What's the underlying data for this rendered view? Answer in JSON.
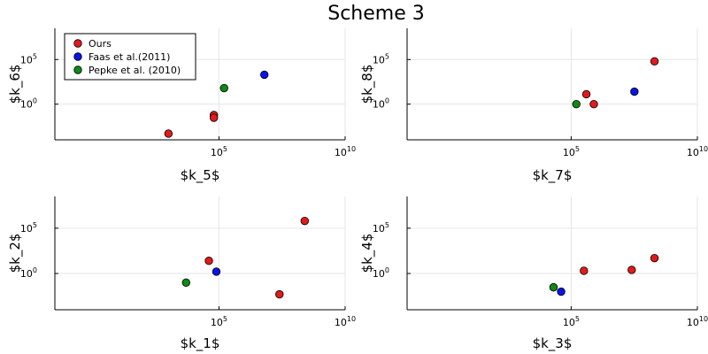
{
  "title": "Scheme 3",
  "colors": {
    "Ours": "#e31a1c",
    "Faas et al.(2011)": "#0a14e8",
    "Pepke et al. (2010)": "#0e8a16"
  },
  "chart_data": [
    {
      "type": "scatter",
      "xlabel": "$k_5$",
      "ylabel": "$k_6$",
      "x_scale": "log10",
      "y_scale": "log10",
      "xlim_exp": [
        -1.5,
        10
      ],
      "ylim_exp": [
        -4,
        8.5
      ],
      "x_ticks": [
        {
          "base": "10",
          "exp": "5",
          "value_exp": 5
        },
        {
          "base": "10",
          "exp": "10",
          "value_exp": 10
        }
      ],
      "y_ticks": [
        {
          "base": "10",
          "exp": "5",
          "value_exp": 5
        },
        {
          "base": "10",
          "exp": "0",
          "value_exp": 0
        }
      ],
      "legend": {
        "placement": "top-left",
        "entries": [
          "Ours",
          "Faas et al.(2011)",
          "Pepke et al. (2010)"
        ]
      },
      "series": [
        {
          "name": "Ours",
          "points": [
            [
              1000,
              0.0005
            ],
            [
              63000,
              0.06
            ],
            [
              63000,
              0.03
            ]
          ]
        },
        {
          "name": "Faas et al.(2011)",
          "points": [
            [
              6300000,
              2000
            ]
          ]
        },
        {
          "name": "Pepke et al. (2010)",
          "points": [
            [
              160000,
              63
            ]
          ]
        }
      ]
    },
    {
      "type": "scatter",
      "xlabel": "$k_7$",
      "ylabel": "$k_8$",
      "x_scale": "log10",
      "y_scale": "log10",
      "xlim_exp": [
        -1.5,
        10
      ],
      "ylim_exp": [
        -4,
        8.5
      ],
      "x_ticks": [
        {
          "base": "10",
          "exp": "5",
          "value_exp": 5
        },
        {
          "base": "10",
          "exp": "10",
          "value_exp": 10
        }
      ],
      "y_ticks": [
        {
          "base": "10",
          "exp": "5",
          "value_exp": 5
        },
        {
          "base": "10",
          "exp": "0",
          "value_exp": 0
        }
      ],
      "legend": null,
      "series": [
        {
          "name": "Ours",
          "points": [
            [
              400000,
              13
            ],
            [
              790000,
              1.0
            ],
            [
              200000000,
              63000
            ]
          ]
        },
        {
          "name": "Faas et al.(2011)",
          "points": [
            [
              32000000,
              25
            ]
          ]
        },
        {
          "name": "Pepke et al. (2010)",
          "points": [
            [
              160000,
              1.0
            ]
          ]
        }
      ]
    },
    {
      "type": "scatter",
      "xlabel": "$k_1$",
      "ylabel": "$k_2$",
      "x_scale": "log10",
      "y_scale": "log10",
      "xlim_exp": [
        -1.5,
        10
      ],
      "ylim_exp": [
        -4,
        8.5
      ],
      "x_ticks": [
        {
          "base": "10",
          "exp": "5",
          "value_exp": 5
        },
        {
          "base": "10",
          "exp": "10",
          "value_exp": 10
        }
      ],
      "y_ticks": [
        {
          "base": "10",
          "exp": "5",
          "value_exp": 5
        },
        {
          "base": "10",
          "exp": "0",
          "value_exp": 0
        }
      ],
      "legend": null,
      "series": [
        {
          "name": "Ours",
          "points": [
            [
              40000,
              25
            ],
            [
              25000000,
              0.005
            ],
            [
              250000000,
              630000
            ]
          ]
        },
        {
          "name": "Faas et al.(2011)",
          "points": [
            [
              79000,
              1.6
            ]
          ]
        },
        {
          "name": "Pepke et al. (2010)",
          "points": [
            [
              5000,
              0.1
            ]
          ]
        }
      ]
    },
    {
      "type": "scatter",
      "xlabel": "$k_3$",
      "ylabel": "$k_4$",
      "x_scale": "log10",
      "y_scale": "log10",
      "xlim_exp": [
        -1.5,
        10
      ],
      "ylim_exp": [
        -4,
        8.5
      ],
      "x_ticks": [
        {
          "base": "10",
          "exp": "5",
          "value_exp": 5
        },
        {
          "base": "10",
          "exp": "10",
          "value_exp": 10
        }
      ],
      "y_ticks": [
        {
          "base": "10",
          "exp": "5",
          "value_exp": 5
        },
        {
          "base": "10",
          "exp": "0",
          "value_exp": 0
        }
      ],
      "legend": null,
      "series": [
        {
          "name": "Ours",
          "points": [
            [
              320000,
              2.0
            ],
            [
              25000000,
              2.5
            ],
            [
              200000000,
              50
            ]
          ]
        },
        {
          "name": "Faas et al.(2011)",
          "points": [
            [
              40000,
              0.01
            ]
          ]
        },
        {
          "name": "Pepke et al. (2010)",
          "points": [
            [
              20000,
              0.03
            ]
          ]
        }
      ]
    }
  ]
}
